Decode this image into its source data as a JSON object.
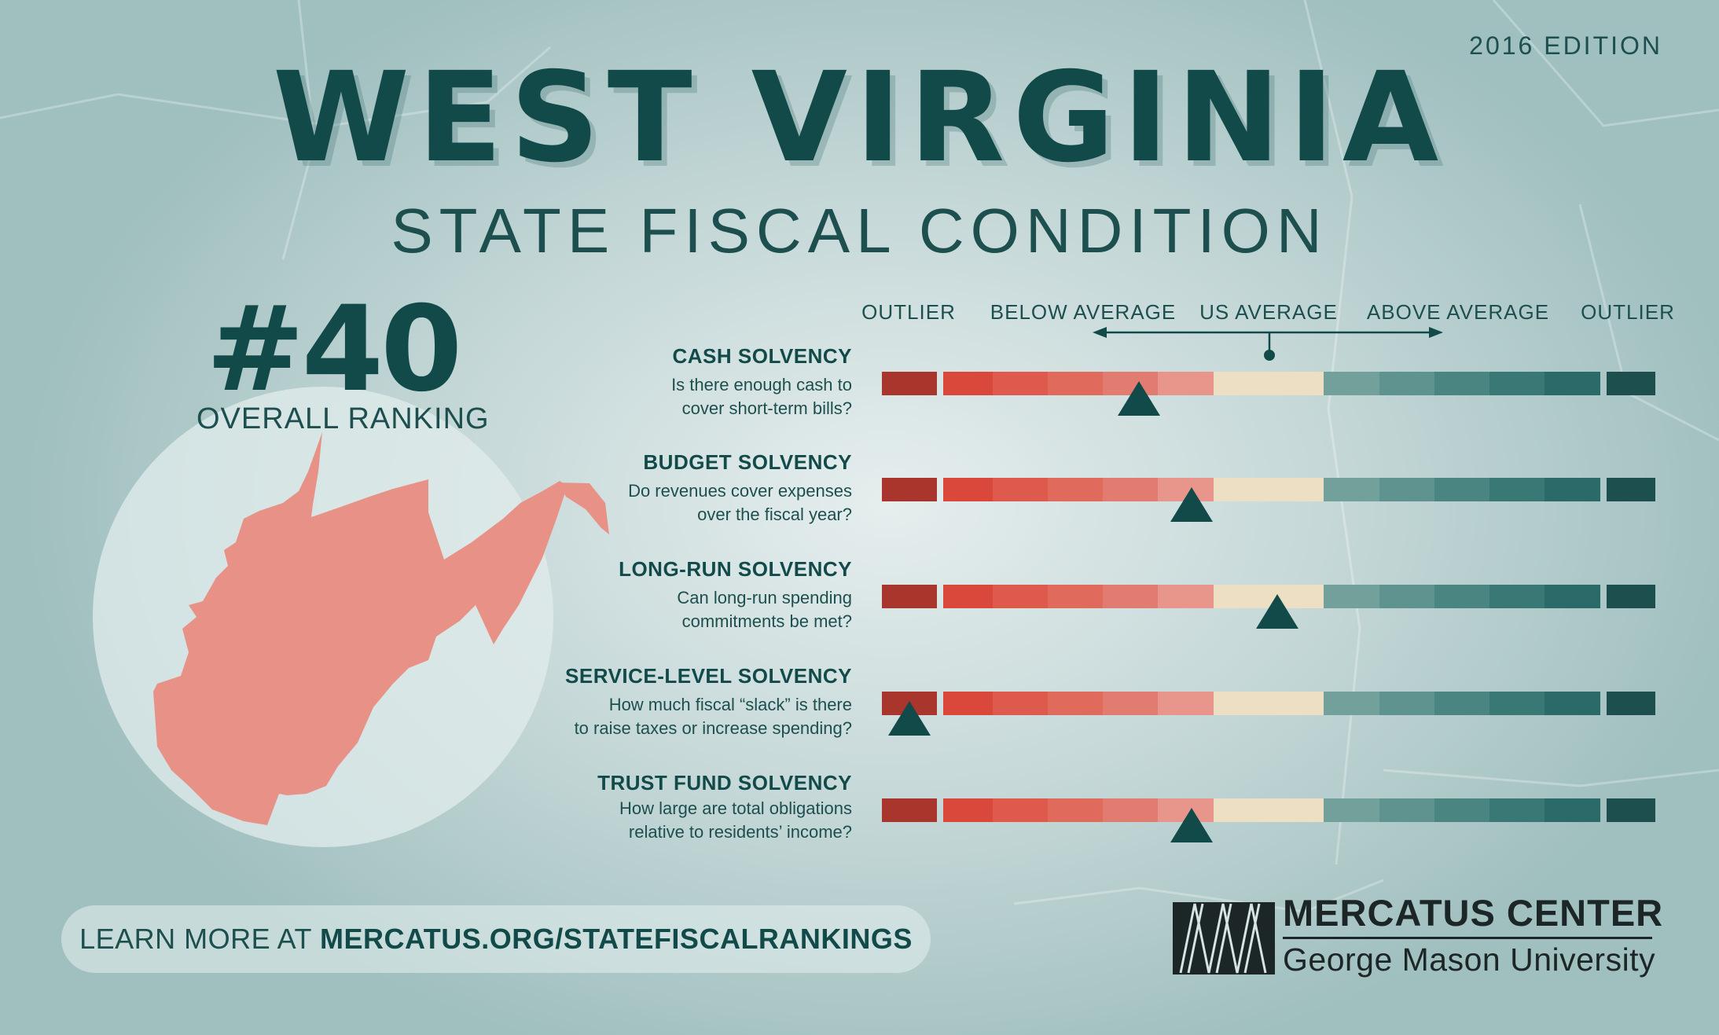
{
  "edition": "2016 EDITION",
  "title": "WEST VIRGINIA",
  "subtitle": "STATE FISCAL CONDITION",
  "ranking": {
    "number": "#40",
    "label": "OVERALL RANKING"
  },
  "chart_data": {
    "type": "table",
    "columns": [
      "OUTLIER",
      "BELOW AVERAGE",
      "US AVERAGE",
      "ABOVE AVERAGE",
      "OUTLIER"
    ],
    "scale_segments": 14,
    "colors": {
      "segments": [
        "#a8362c",
        "#d9483a",
        "#dd5a4c",
        "#e06a5c",
        "#e27c70",
        "#e8958b",
        "#ecdfc4",
        "#ecdfc4",
        "#72a19c",
        "#5e9390",
        "#4a8582",
        "#3a7875",
        "#2a6b69",
        "#1c4f4e"
      ],
      "marker": "#124a4a"
    },
    "rows": [
      {
        "title": "CASH SOLVENCY",
        "question_line1": "Is there enough cash to",
        "question_line2": "cover short-term bills?",
        "marker": 4.65
      },
      {
        "title": "BUDGET SOLVENCY",
        "question_line1": "Do revenues cover expenses",
        "question_line2": "over the fiscal year?",
        "marker": 5.6
      },
      {
        "title": "LONG-RUN SOLVENCY",
        "question_line1": "Can long-run spending",
        "question_line2": "commitments be met?",
        "marker": 7.15
      },
      {
        "title": "SERVICE-LEVEL SOLVENCY",
        "question_line1": "How much fiscal “slack” is there",
        "question_line2": "to raise taxes or increase spending?",
        "marker": 0.5
      },
      {
        "title": "TRUST FUND SOLVENCY",
        "question_line1": "How large are total obligations",
        "question_line2": "relative to residents’ income?",
        "marker": 5.6
      }
    ]
  },
  "learn_more": {
    "prefix": "LEARN MORE AT",
    "url": "MERCATUS.ORG/STATEFISCALRANKINGS"
  },
  "logo": {
    "name": "MERCATUS CENTER",
    "sub": "George Mason University",
    "icon": "mercatus-mark-icon"
  },
  "state_shape": {
    "icon": "west-virginia-map-icon",
    "color": "#e89287"
  }
}
